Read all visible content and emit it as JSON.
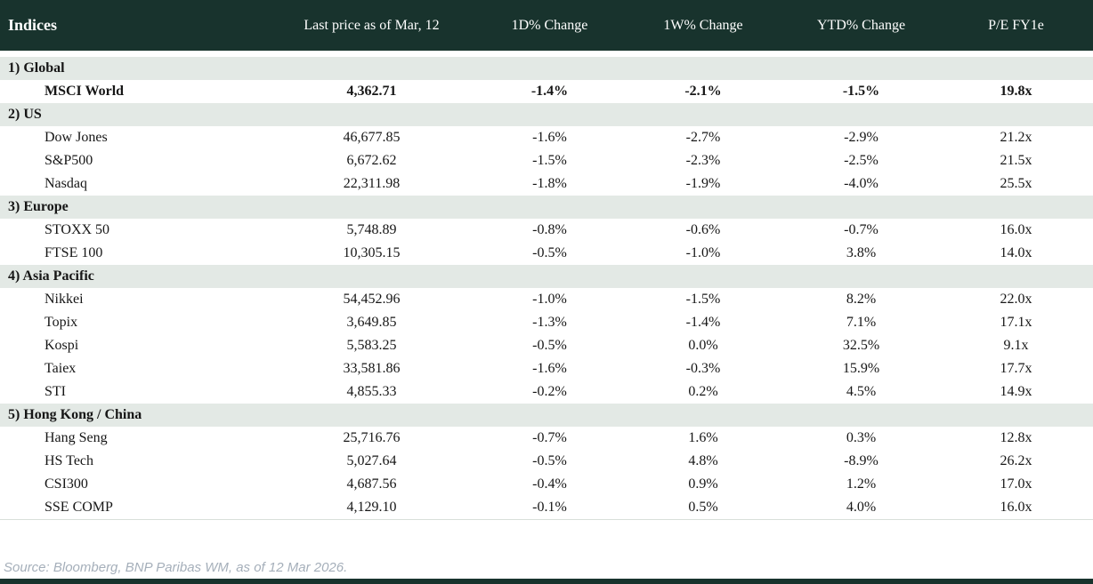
{
  "table": {
    "columns": [
      "Indices",
      "Last price as of Mar, 12",
      "1D% Change",
      "1W% Change",
      "YTD% Change",
      "P/E FY1e"
    ],
    "sections": [
      {
        "label": "1) Global",
        "rows": [
          {
            "name": "MSCI World",
            "last": "4,362.71",
            "d1": {
              "value": "-1.4%",
              "tone": "neg"
            },
            "w1": {
              "value": "-2.1%",
              "tone": "neg"
            },
            "ytd": {
              "value": "-1.5%",
              "tone": "neg"
            },
            "pe": "19.8x",
            "bold": true
          }
        ]
      },
      {
        "label": "2) US",
        "rows": [
          {
            "name": "Dow Jones",
            "last": "46,677.85",
            "d1": {
              "value": "-1.6%",
              "tone": "neg"
            },
            "w1": {
              "value": "-2.7%",
              "tone": "neg"
            },
            "ytd": {
              "value": "-2.9%",
              "tone": "neg"
            },
            "pe": "21.2x",
            "bold": false
          },
          {
            "name": "S&P500",
            "last": "6,672.62",
            "d1": {
              "value": "-1.5%",
              "tone": "neg"
            },
            "w1": {
              "value": "-2.3%",
              "tone": "neg"
            },
            "ytd": {
              "value": "-2.5%",
              "tone": "neg"
            },
            "pe": "21.5x",
            "bold": false
          },
          {
            "name": "Nasdaq",
            "last": "22,311.98",
            "d1": {
              "value": "-1.8%",
              "tone": "neg"
            },
            "w1": {
              "value": "-1.9%",
              "tone": "neg"
            },
            "ytd": {
              "value": "-4.0%",
              "tone": "neg"
            },
            "pe": "25.5x",
            "bold": false
          }
        ]
      },
      {
        "label": "3) Europe",
        "rows": [
          {
            "name": "STOXX 50",
            "last": "5,748.89",
            "d1": {
              "value": "-0.8%",
              "tone": "neg"
            },
            "w1": {
              "value": "-0.6%",
              "tone": "neg"
            },
            "ytd": {
              "value": "-0.7%",
              "tone": "neg"
            },
            "pe": "16.0x",
            "bold": false
          },
          {
            "name": "FTSE 100",
            "last": "10,305.15",
            "d1": {
              "value": "-0.5%",
              "tone": "neg"
            },
            "w1": {
              "value": "-1.0%",
              "tone": "neg"
            },
            "ytd": {
              "value": "3.8%",
              "tone": "pos"
            },
            "pe": "14.0x",
            "bold": false
          }
        ]
      },
      {
        "label": "4) Asia Pacific",
        "rows": [
          {
            "name": "Nikkei",
            "last": "54,452.96",
            "d1": {
              "value": "-1.0%",
              "tone": "neg"
            },
            "w1": {
              "value": "-1.5%",
              "tone": "neg"
            },
            "ytd": {
              "value": "8.2%",
              "tone": "pos"
            },
            "pe": "22.0x",
            "bold": false
          },
          {
            "name": "Topix",
            "last": "3,649.85",
            "d1": {
              "value": "-1.3%",
              "tone": "neg"
            },
            "w1": {
              "value": "-1.4%",
              "tone": "neg"
            },
            "ytd": {
              "value": "7.1%",
              "tone": "pos"
            },
            "pe": "17.1x",
            "bold": false
          },
          {
            "name": "Kospi",
            "last": "5,583.25",
            "d1": {
              "value": "-0.5%",
              "tone": "neg"
            },
            "w1": {
              "value": "0.0%",
              "tone": "neg"
            },
            "ytd": {
              "value": "32.5%",
              "tone": "pos"
            },
            "pe": "9.1x",
            "bold": false
          },
          {
            "name": "Taiex",
            "last": "33,581.86",
            "d1": {
              "value": "-1.6%",
              "tone": "neg"
            },
            "w1": {
              "value": "-0.3%",
              "tone": "neg"
            },
            "ytd": {
              "value": "15.9%",
              "tone": "pos"
            },
            "pe": "17.7x",
            "bold": false
          },
          {
            "name": "STI",
            "last": "4,855.33",
            "d1": {
              "value": "-0.2%",
              "tone": "neg"
            },
            "w1": {
              "value": "0.2%",
              "tone": "pos"
            },
            "ytd": {
              "value": "4.5%",
              "tone": "pos"
            },
            "pe": "14.9x",
            "bold": false
          }
        ]
      },
      {
        "label": "5) Hong Kong / China",
        "rows": [
          {
            "name": "Hang Seng",
            "last": "25,716.76",
            "d1": {
              "value": "-0.7%",
              "tone": "neg"
            },
            "w1": {
              "value": "1.6%",
              "tone": "pos"
            },
            "ytd": {
              "value": "0.3%",
              "tone": "pos"
            },
            "pe": "12.8x",
            "bold": false
          },
          {
            "name": "HS Tech",
            "last": "5,027.64",
            "d1": {
              "value": "-0.5%",
              "tone": "neg"
            },
            "w1": {
              "value": "4.8%",
              "tone": "pos"
            },
            "ytd": {
              "value": "-8.9%",
              "tone": "neg"
            },
            "pe": "26.2x",
            "bold": false
          },
          {
            "name": "CSI300",
            "last": "4,687.56",
            "d1": {
              "value": "-0.4%",
              "tone": "neg"
            },
            "w1": {
              "value": "0.9%",
              "tone": "pos"
            },
            "ytd": {
              "value": "1.2%",
              "tone": "pos"
            },
            "pe": "17.0x",
            "bold": false
          },
          {
            "name": "SSE COMP",
            "last": "4,129.10",
            "d1": {
              "value": "-0.1%",
              "tone": "neg"
            },
            "w1": {
              "value": "0.5%",
              "tone": "pos"
            },
            "ytd": {
              "value": "4.0%",
              "tone": "pos"
            },
            "pe": "16.0x",
            "bold": false
          }
        ]
      }
    ]
  },
  "footer": {
    "source": "Source: Bloomberg, BNP Paribas WM, as of 12 Mar 2026."
  },
  "colors": {
    "header_bg": "#18332d",
    "section_bg": "#e3e9e5",
    "negative": "#c00020",
    "positive": "#00a03a",
    "source_text": "#a5afba",
    "bottom_bar": "#18332d"
  }
}
